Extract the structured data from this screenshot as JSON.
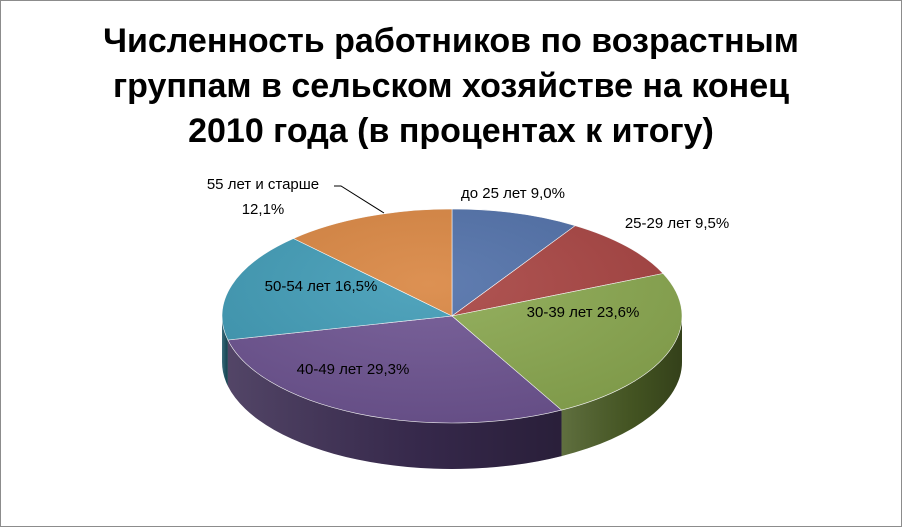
{
  "chart_data": {
    "type": "pie",
    "title": "Численность работников по возрастным\nгруппам в сельском хозяйстве на конец\n2010 года (в процентах к итогу)",
    "three_d": true,
    "legend": "none",
    "slices": [
      {
        "label": "до 25 лет",
        "value": 9.0,
        "value_text": "9,0%",
        "color": "#4f6fa8",
        "side": "#2c3f60"
      },
      {
        "label": "25-29 лет",
        "value": 9.5,
        "value_text": "9,5%",
        "color": "#a84341",
        "side": "#602625"
      },
      {
        "label": "30-39 лет",
        "value": 23.6,
        "value_text": "23,6%",
        "color": "#8aa84f",
        "side": "#4a5c25"
      },
      {
        "label": "40-49 лет",
        "value": 29.3,
        "value_text": "29,3%",
        "color": "#6d5391",
        "side": "#3b2c52"
      },
      {
        "label": "50-54 лет",
        "value": 16.5,
        "value_text": "16,5%",
        "color": "#3f9bb6",
        "side": "#22596a"
      },
      {
        "label": "55 лет и старше",
        "value": 12.1,
        "value_text": "12,1%",
        "color": "#d98540",
        "side": "#7a4a22"
      }
    ]
  }
}
